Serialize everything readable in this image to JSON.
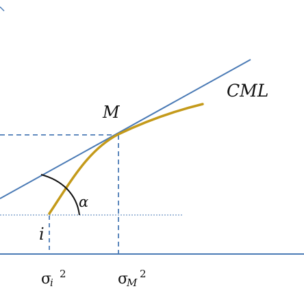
{
  "labels": {
    "cml": "CML",
    "market_point": "M",
    "asset_point": "i",
    "angle": "α",
    "sigma": "σ",
    "sub_i": "i",
    "sub_m": "M",
    "squared": "2"
  },
  "colors": {
    "cml_line": "#4a7ab5",
    "frontier_curve": "#c49a1a",
    "dashed_guides": "#4a7ab5",
    "axis": "#4a7ab5",
    "angle_arc": "#111111",
    "text": "#111111"
  }
}
